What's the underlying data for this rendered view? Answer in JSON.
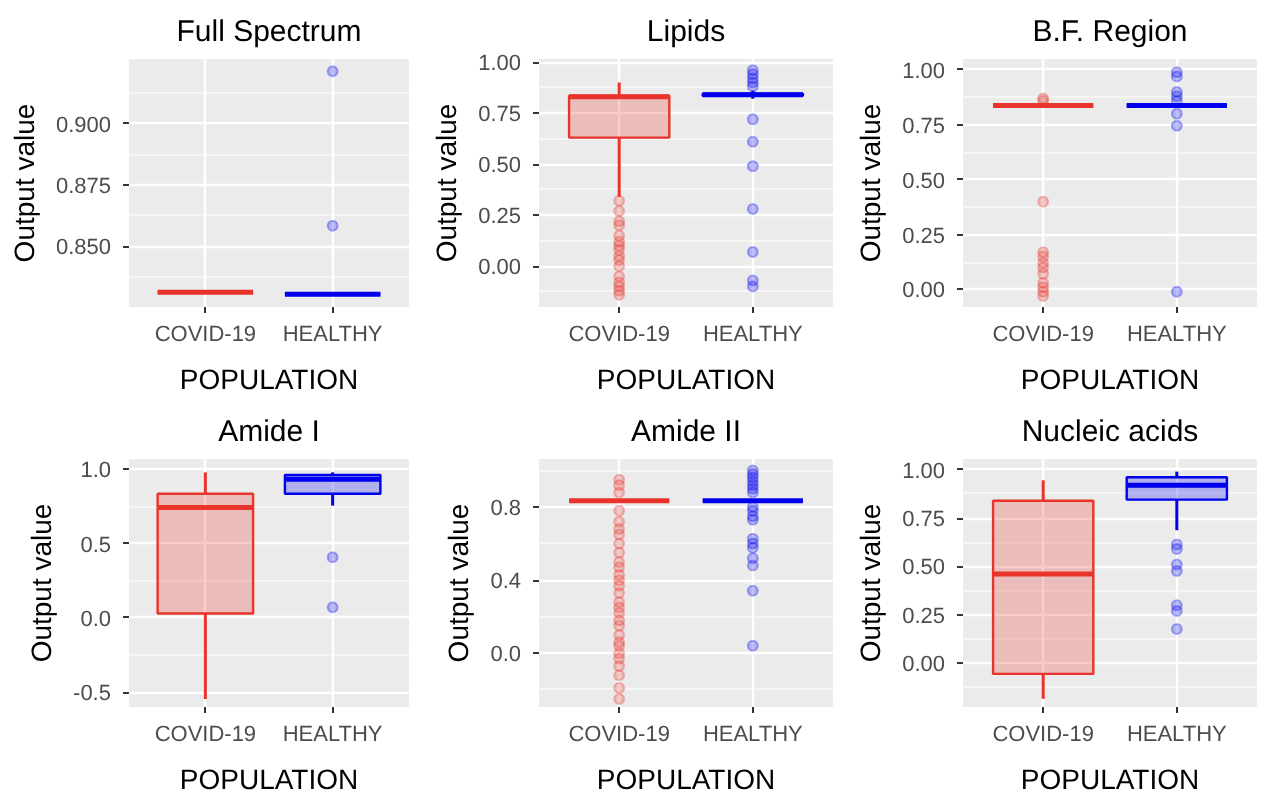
{
  "chart_data": [
    {
      "type": "box",
      "title": "Full Spectrum",
      "xlabel": "POPULATION",
      "ylabel": "Output value",
      "categories": [
        "COVID-19",
        "HEALTHY"
      ],
      "colors": [
        "#e8342a",
        "#0000ee"
      ],
      "grid": true,
      "ylim": [
        0.8253,
        0.9265
      ],
      "yticks": [
        {
          "value": 0.85,
          "label": "0.850"
        },
        {
          "value": 0.875,
          "label": "0.875"
        },
        {
          "value": 0.9,
          "label": "0.900"
        }
      ],
      "boxes": [
        {
          "low": 0.8313,
          "q1": 0.8313,
          "median": 0.8313,
          "q3": 0.8313,
          "high": 0.8313
        },
        {
          "low": 0.8305,
          "q1": 0.8305,
          "median": 0.8305,
          "q3": 0.8305,
          "high": 0.8305,
          "outliers": [
            0.9215,
            0.8585
          ]
        }
      ]
    },
    {
      "type": "box",
      "title": "Lipids",
      "xlabel": "POPULATION",
      "ylabel": "Output value",
      "categories": [
        "COVID-19",
        "HEALTHY"
      ],
      "colors": [
        "#e8342a",
        "#0000ee"
      ],
      "grid": true,
      "ylim": [
        -0.2,
        1.015
      ],
      "yticks": [
        {
          "value": 0,
          "label": "0.00"
        },
        {
          "value": 0.25,
          "label": "0.25"
        },
        {
          "value": 0.5,
          "label": "0.50"
        },
        {
          "value": 0.75,
          "label": "0.75"
        },
        {
          "value": 1,
          "label": "1.00"
        }
      ],
      "boxes": [
        {
          "low": 0.34,
          "q1": 0.63,
          "median": 0.83,
          "q3": 0.835,
          "high": 0.9,
          "outliers": [
            0.32,
            0.27,
            0.22,
            0.2,
            0.15,
            0.12,
            0.1,
            0.08,
            0.05,
            0.03,
            0.0,
            -0.05,
            -0.08,
            -0.1,
            -0.12,
            -0.14
          ]
        },
        {
          "low": 0.82,
          "q1": 0.835,
          "median": 0.84,
          "q3": 0.845,
          "high": 0.86,
          "outliers": [
            0.88,
            0.9,
            0.92,
            0.94,
            0.96,
            0.72,
            0.61,
            0.49,
            0.28,
            0.07,
            -0.07,
            -0.1
          ]
        }
      ]
    },
    {
      "type": "box",
      "title": "B.F. Region",
      "xlabel": "POPULATION",
      "ylabel": "Output value",
      "categories": [
        "COVID-19",
        "HEALTHY"
      ],
      "colors": [
        "#e8342a",
        "#0000ee"
      ],
      "grid": true,
      "ylim": [
        -0.08,
        1.05
      ],
      "yticks": [
        {
          "value": 0,
          "label": "0.00"
        },
        {
          "value": 0.25,
          "label": "0.25"
        },
        {
          "value": 0.5,
          "label": "0.50"
        },
        {
          "value": 0.75,
          "label": "0.75"
        },
        {
          "value": 1,
          "label": "1.00"
        }
      ],
      "boxes": [
        {
          "low": 0.838,
          "q1": 0.838,
          "median": 0.838,
          "q3": 0.838,
          "high": 0.838,
          "outliers": [
            0.86,
            0.87,
            0.4,
            0.17,
            0.15,
            0.12,
            0.1,
            0.07,
            0.03,
            0.01,
            -0.01,
            -0.03
          ]
        },
        {
          "low": 0.838,
          "q1": 0.838,
          "median": 0.838,
          "q3": 0.838,
          "high": 0.838,
          "outliers": [
            0.99,
            0.97,
            0.9,
            0.88,
            0.86,
            0.8,
            0.746,
            -0.01
          ]
        }
      ]
    },
    {
      "type": "box",
      "title": "Amide I",
      "xlabel": "POPULATION",
      "ylabel": "Output value",
      "categories": [
        "COVID-19",
        "HEALTHY"
      ],
      "colors": [
        "#e8342a",
        "#0000ee"
      ],
      "grid": true,
      "ylim": [
        -0.6,
        1.07
      ],
      "yticks": [
        {
          "value": -0.5,
          "label": "-0.5"
        },
        {
          "value": 0,
          "label": "0.0"
        },
        {
          "value": 0.5,
          "label": "0.5"
        },
        {
          "value": 1,
          "label": "1.0"
        }
      ],
      "boxes": [
        {
          "low": -0.546,
          "q1": 0.03,
          "median": 0.744,
          "q3": 0.836,
          "high": 0.98
        },
        {
          "low": 0.756,
          "q1": 0.836,
          "median": 0.933,
          "q3": 0.962,
          "high": 0.98,
          "outliers": [
            0.408,
            0.071
          ]
        }
      ]
    },
    {
      "type": "box",
      "title": "Amide II",
      "xlabel": "POPULATION",
      "ylabel": "Output value",
      "categories": [
        "COVID-19",
        "HEALTHY"
      ],
      "colors": [
        "#e8342a",
        "#0000ee"
      ],
      "grid": true,
      "ylim": [
        -0.294,
        1.063
      ],
      "yticks": [
        {
          "value": 0,
          "label": "0.0"
        },
        {
          "value": 0.4,
          "label": "0.4"
        },
        {
          "value": 0.8,
          "label": "0.8"
        }
      ],
      "boxes": [
        {
          "low": 0.834,
          "q1": 0.834,
          "median": 0.834,
          "q3": 0.834,
          "high": 0.834,
          "outliers": [
            0.95,
            0.92,
            0.88,
            0.78,
            0.72,
            0.68,
            0.65,
            0.6,
            0.55,
            0.5,
            0.47,
            0.43,
            0.4,
            0.37,
            0.33,
            0.28,
            0.25,
            0.22,
            0.18,
            0.15,
            0.1,
            0.06,
            0.04,
            0.0,
            -0.03,
            -0.07,
            -0.12,
            -0.19,
            -0.25
          ]
        },
        {
          "low": 0.834,
          "q1": 0.834,
          "median": 0.834,
          "q3": 0.834,
          "high": 0.834,
          "outliers": [
            1.0,
            0.98,
            0.96,
            0.94,
            0.92,
            0.9,
            0.88,
            0.8,
            0.78,
            0.75,
            0.73,
            0.626,
            0.6,
            0.578,
            0.52,
            0.48,
            0.342,
            0.041
          ]
        }
      ]
    },
    {
      "type": "box",
      "title": "Nucleic acids",
      "xlabel": "POPULATION",
      "ylabel": "Output value",
      "categories": [
        "COVID-19",
        "HEALTHY"
      ],
      "colors": [
        "#e8342a",
        "#0000ee"
      ],
      "grid": true,
      "ylim": [
        -0.226,
        1.055
      ],
      "yticks": [
        {
          "value": 0,
          "label": "0.00"
        },
        {
          "value": 0.25,
          "label": "0.25"
        },
        {
          "value": 0.5,
          "label": "0.50"
        },
        {
          "value": 0.75,
          "label": "0.75"
        },
        {
          "value": 1,
          "label": "1.00"
        }
      ],
      "boxes": [
        {
          "low": -0.184,
          "q1": -0.055,
          "median": 0.461,
          "q3": 0.839,
          "high": 0.945
        },
        {
          "low": 0.687,
          "q1": 0.845,
          "median": 0.919,
          "q3": 0.961,
          "high": 0.99,
          "outliers": [
            0.613,
            0.59,
            0.51,
            0.477,
            0.3,
            0.27,
            0.177
          ]
        }
      ]
    }
  ]
}
